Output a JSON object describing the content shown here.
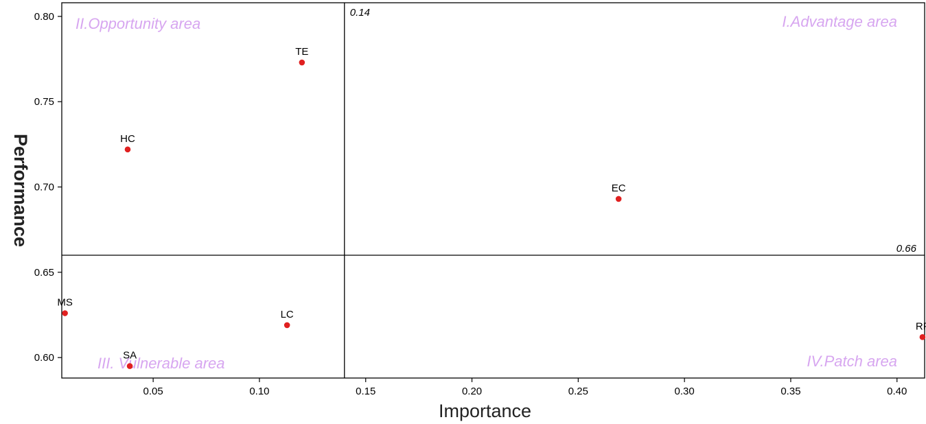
{
  "chart_data": {
    "type": "scatter",
    "xlabel": "Importance",
    "ylabel": "Performance",
    "xlim": [
      0.007,
      0.413
    ],
    "ylim": [
      0.588,
      0.808
    ],
    "xticks": [
      0.05,
      0.1,
      0.15,
      0.2,
      0.25,
      0.3,
      0.35,
      0.4
    ],
    "xtick_labels": [
      "0.05",
      "0.10",
      "0.15",
      "0.20",
      "0.25",
      "0.30",
      "0.35",
      "0.40"
    ],
    "yticks": [
      0.6,
      0.65,
      0.7,
      0.75,
      0.8
    ],
    "ytick_labels": [
      "0.60",
      "0.65",
      "0.70",
      "0.75",
      "0.80"
    ],
    "grid": false,
    "point_color": "#e02020",
    "points": [
      {
        "label": "TE",
        "x": 0.12,
        "y": 0.773
      },
      {
        "label": "HC",
        "x": 0.038,
        "y": 0.722
      },
      {
        "label": "EC",
        "x": 0.269,
        "y": 0.693
      },
      {
        "label": "MS",
        "x": 0.0085,
        "y": 0.626
      },
      {
        "label": "LC",
        "x": 0.113,
        "y": 0.619
      },
      {
        "label": "SA",
        "x": 0.039,
        "y": 0.595
      },
      {
        "label": "RF",
        "x": 0.412,
        "y": 0.612
      }
    ],
    "thresholds": {
      "x": 0.14,
      "x_label": "0.14",
      "y": 0.66,
      "y_label": "0.66"
    },
    "quadrants": [
      {
        "label": "II.Opportunity area",
        "position": "top-left"
      },
      {
        "label": "I.Advantage area",
        "position": "top-right"
      },
      {
        "label": "III. Vulnerable area",
        "position": "bottom-left"
      },
      {
        "label": "IV.Patch area",
        "position": "bottom-right"
      }
    ],
    "quadrant_label_color": "#d7a6f0"
  }
}
